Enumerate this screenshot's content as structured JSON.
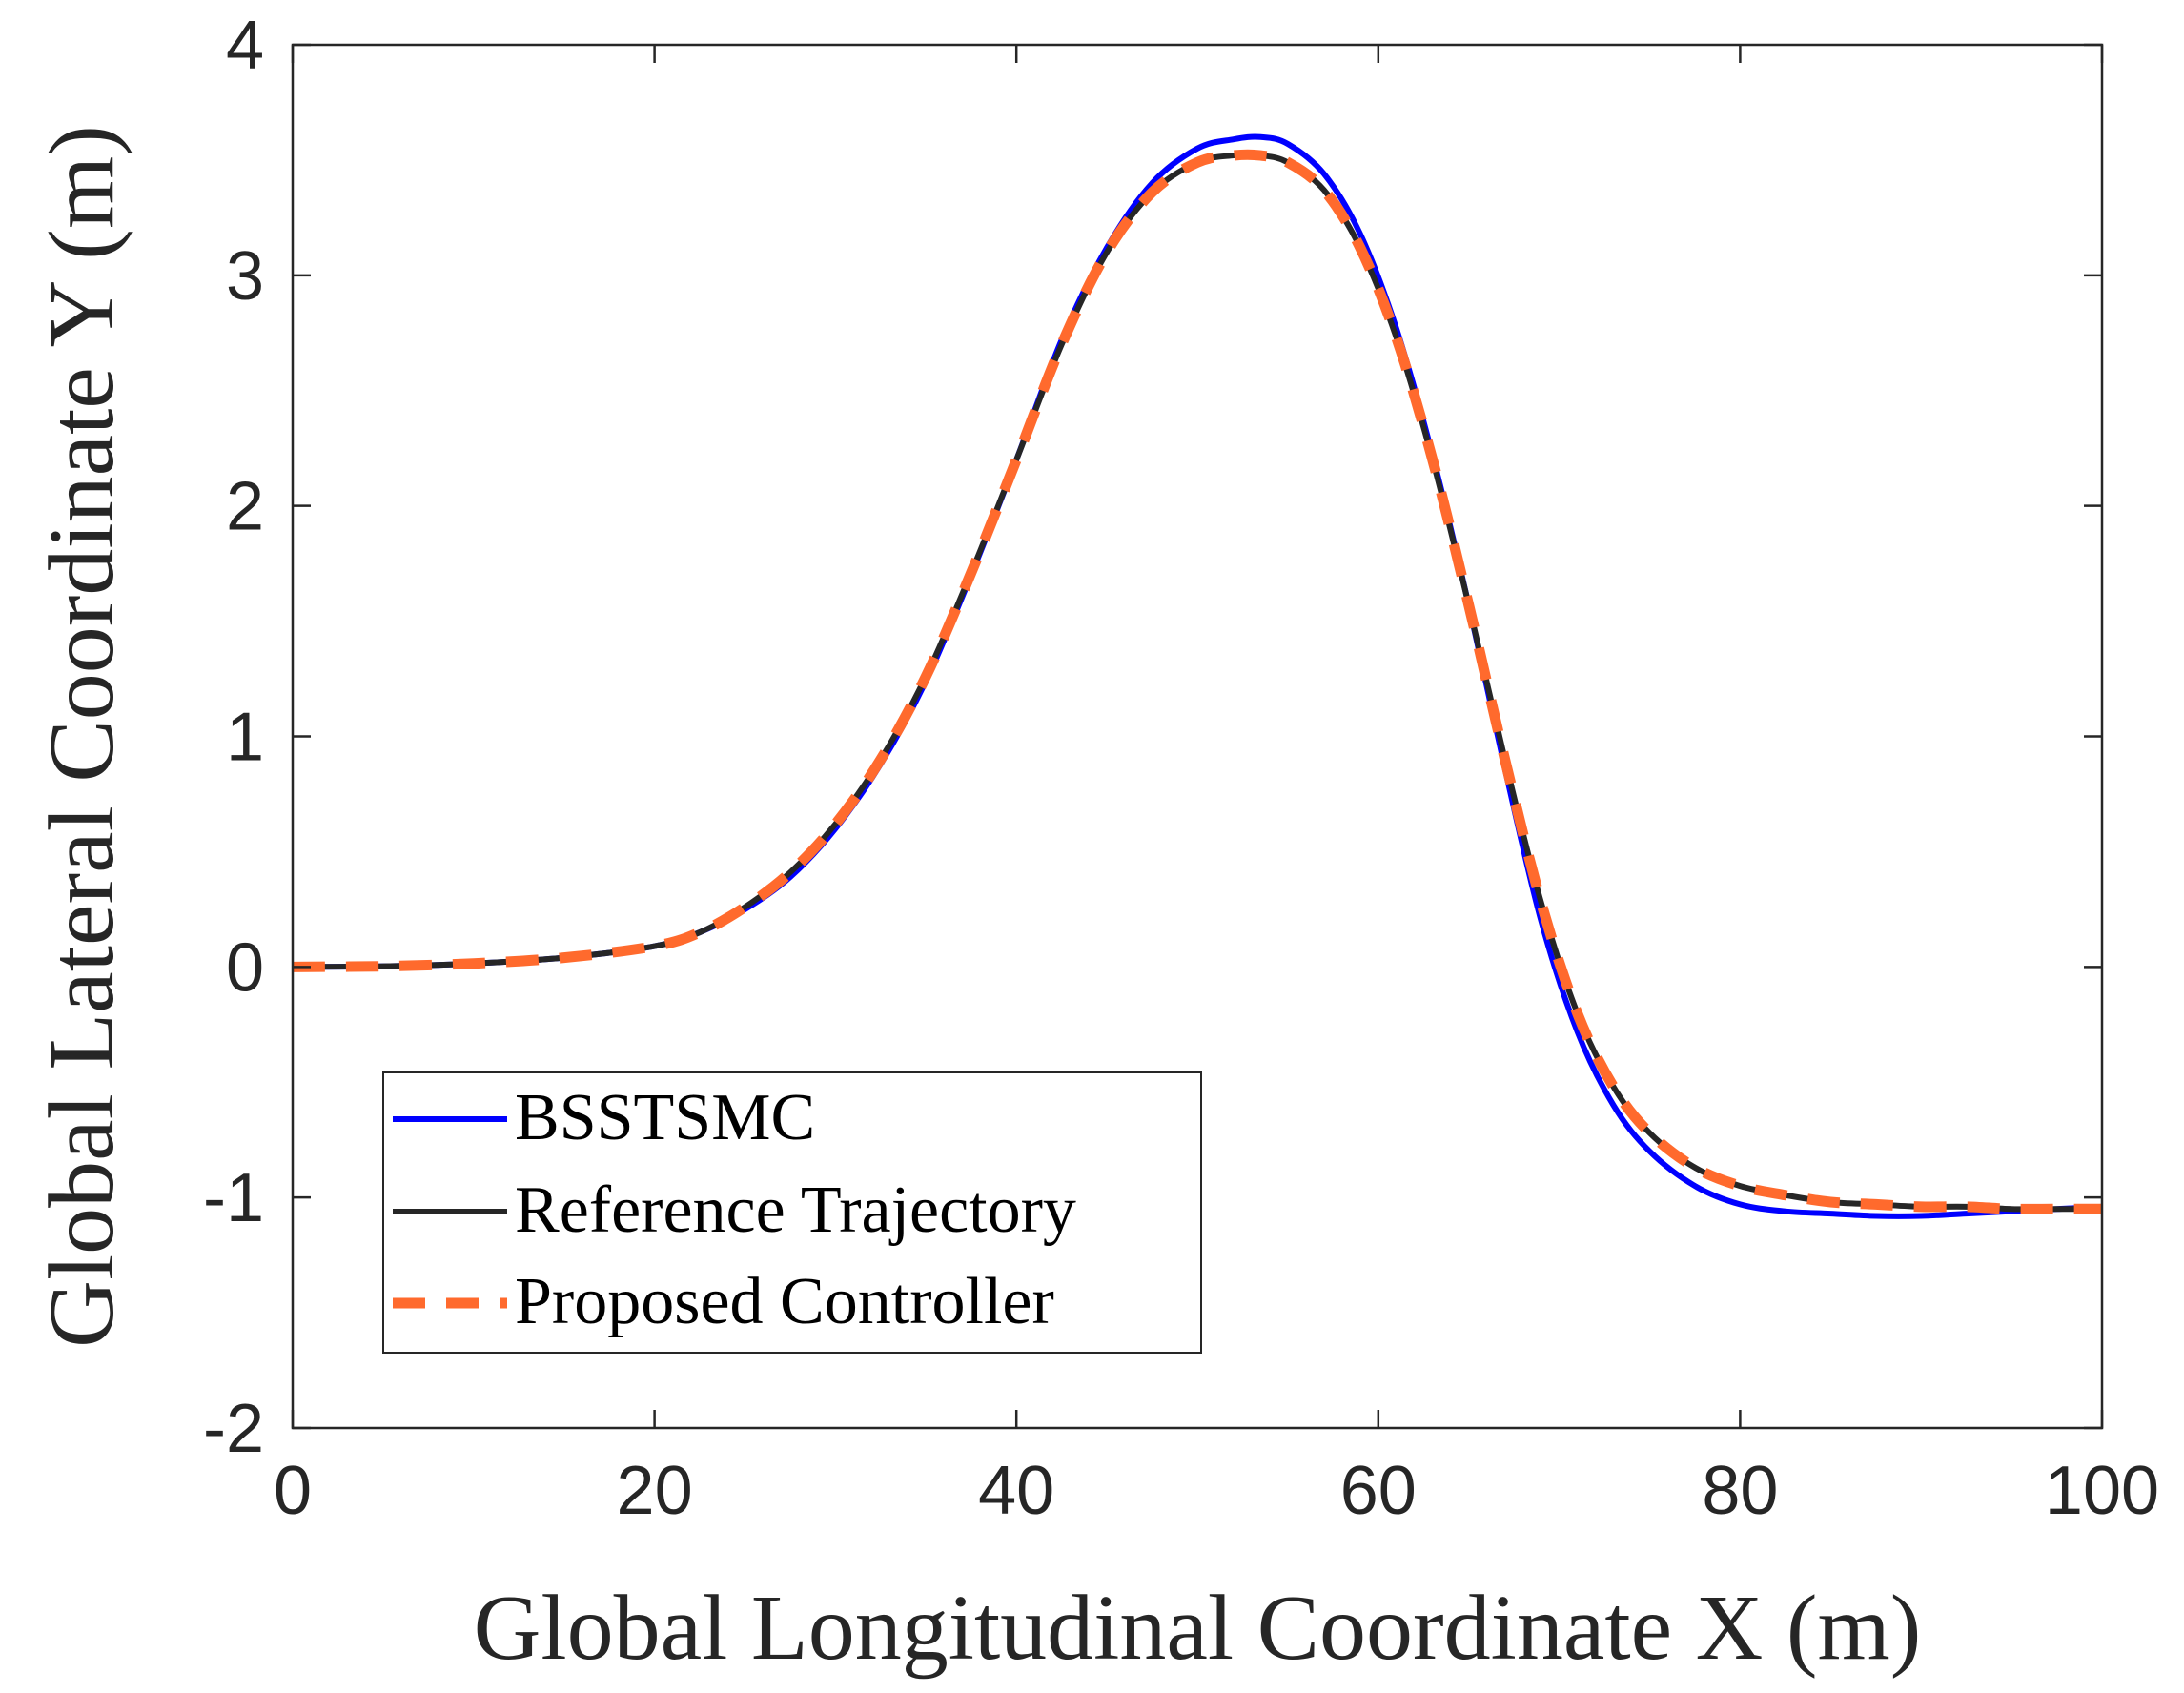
{
  "chart_data": {
    "type": "line",
    "title": "",
    "xlabel": "Global Longitudinal Coordinate X (m)",
    "ylabel": "Global Lateral Coordinate Y (m)",
    "xlim": [
      0,
      100
    ],
    "ylim": [
      -2,
      4
    ],
    "xticks": [
      0,
      20,
      40,
      60,
      80,
      100
    ],
    "xtick_labels": [
      "0",
      "20",
      "40",
      "60",
      "80",
      "100"
    ],
    "yticks": [
      -2,
      -1,
      0,
      1,
      2,
      3,
      4
    ],
    "ytick_labels": [
      "-2",
      "-1",
      "0",
      "1",
      "2",
      "3",
      "4"
    ],
    "grid": false,
    "legend_position": "bottom-left",
    "series": [
      {
        "name": "BSSTSMC",
        "color": "#0000ff",
        "style": "solid",
        "x": [
          0,
          5,
          10,
          15,
          20,
          22.5,
          25,
          27.5,
          30,
          32.5,
          35,
          37.5,
          40,
          42.5,
          45,
          47.5,
          50,
          52,
          53.5,
          55,
          57,
          59,
          61,
          63,
          65,
          67,
          69,
          71,
          73,
          75,
          77.5,
          80,
          82.5,
          85,
          87.5,
          90,
          92.5,
          95,
          97.5,
          100
        ],
        "y": [
          0,
          0.003,
          0.015,
          0.04,
          0.09,
          0.15,
          0.25,
          0.39,
          0.6,
          0.88,
          1.24,
          1.7,
          2.2,
          2.72,
          3.12,
          3.4,
          3.55,
          3.59,
          3.6,
          3.57,
          3.44,
          3.18,
          2.77,
          2.22,
          1.57,
          0.86,
          0.2,
          -0.28,
          -0.6,
          -0.8,
          -0.95,
          -1.03,
          -1.06,
          -1.07,
          -1.08,
          -1.08,
          -1.07,
          -1.06,
          -1.05,
          -1.04
        ]
      },
      {
        "name": "Reference Trajectory",
        "color": "#262626",
        "style": "solid",
        "x": [
          0,
          5,
          10,
          15,
          20,
          22.5,
          25,
          27.5,
          30,
          32.5,
          35,
          37.5,
          40,
          42.5,
          45,
          47.5,
          50,
          52,
          53.5,
          55,
          57,
          59,
          61,
          63,
          65,
          67,
          69,
          71,
          73,
          75,
          77.5,
          80,
          82.5,
          85,
          87.5,
          90,
          92.5,
          95,
          97.5,
          100
        ],
        "y": [
          0,
          0.003,
          0.015,
          0.04,
          0.09,
          0.15,
          0.26,
          0.41,
          0.62,
          0.9,
          1.26,
          1.71,
          2.2,
          2.7,
          3.1,
          3.36,
          3.49,
          3.52,
          3.52,
          3.49,
          3.37,
          3.12,
          2.73,
          2.2,
          1.57,
          0.9,
          0.28,
          -0.2,
          -0.52,
          -0.72,
          -0.87,
          -0.95,
          -0.99,
          -1.02,
          -1.03,
          -1.04,
          -1.04,
          -1.05,
          -1.05,
          -1.05
        ]
      },
      {
        "name": "Proposed Controller",
        "color": "#ff6a2d",
        "style": "dashed",
        "x": [
          0,
          5,
          10,
          15,
          20,
          22.5,
          25,
          27.5,
          30,
          32.5,
          35,
          37.5,
          40,
          42.5,
          45,
          47.5,
          50,
          52,
          53.5,
          55,
          57,
          59,
          61,
          63,
          65,
          67,
          69,
          71,
          73,
          75,
          77.5,
          80,
          82.5,
          85,
          87.5,
          90,
          92.5,
          95,
          97.5,
          100
        ],
        "y": [
          0,
          0.003,
          0.015,
          0.04,
          0.09,
          0.15,
          0.26,
          0.41,
          0.62,
          0.9,
          1.26,
          1.71,
          2.2,
          2.7,
          3.1,
          3.36,
          3.49,
          3.52,
          3.52,
          3.49,
          3.37,
          3.12,
          2.73,
          2.2,
          1.57,
          0.9,
          0.28,
          -0.2,
          -0.52,
          -0.72,
          -0.87,
          -0.95,
          -0.99,
          -1.02,
          -1.03,
          -1.04,
          -1.04,
          -1.05,
          -1.05,
          -1.05
        ]
      }
    ]
  }
}
